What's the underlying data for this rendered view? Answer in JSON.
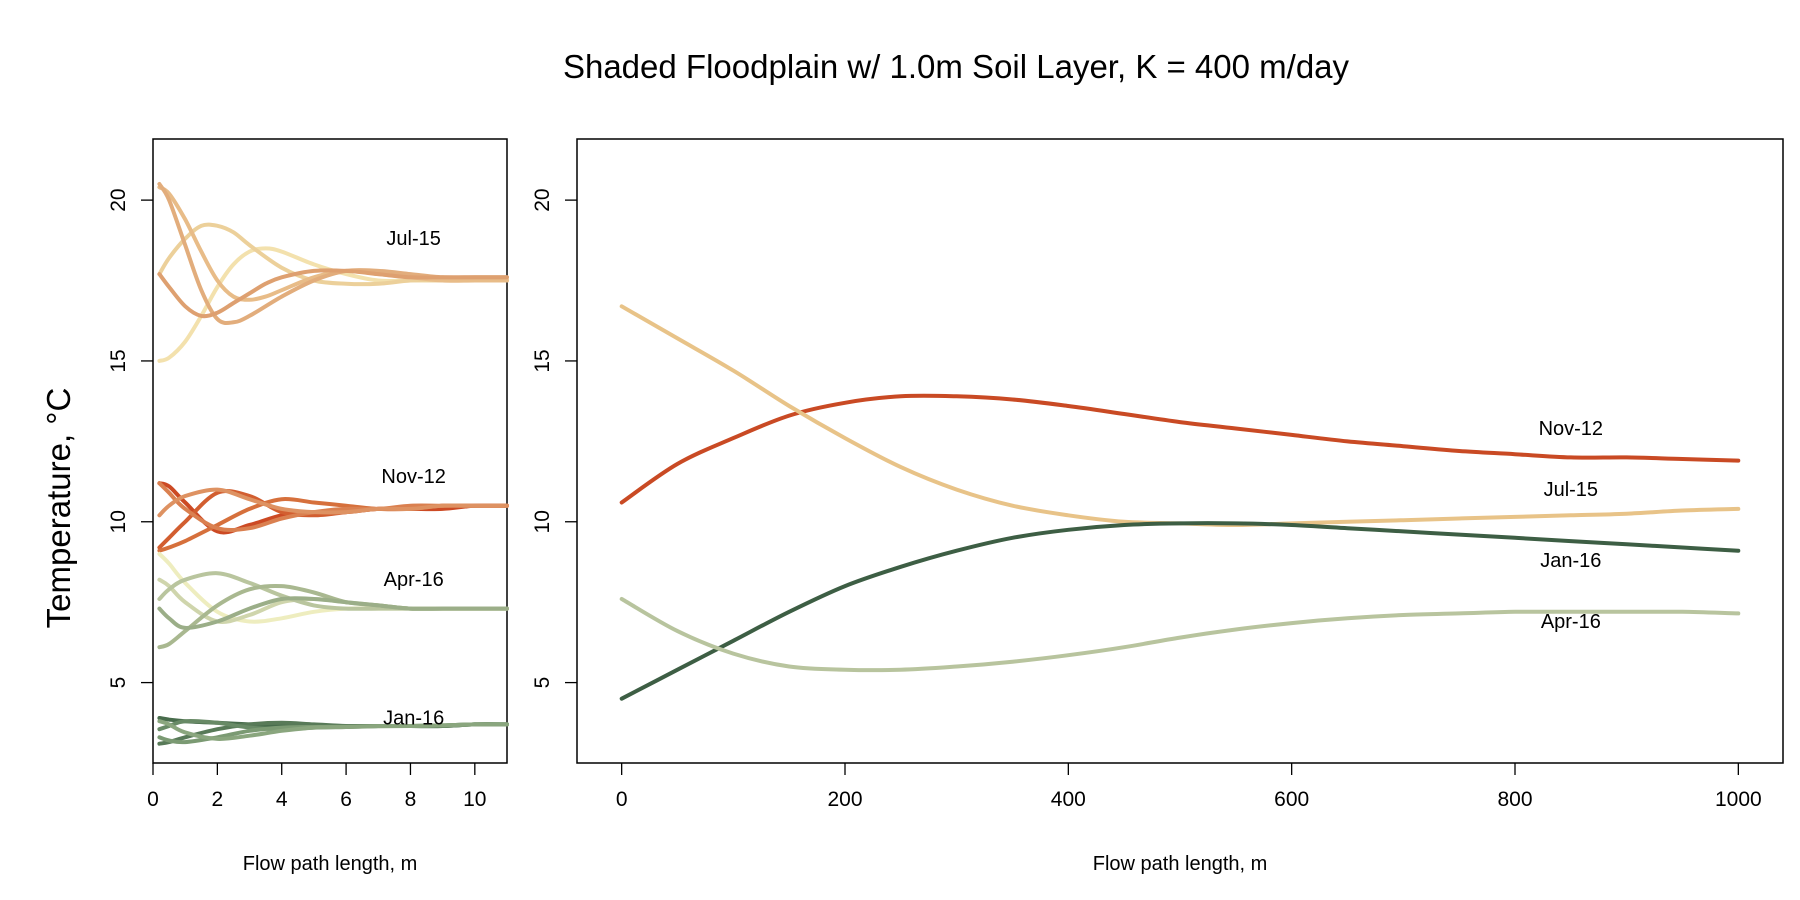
{
  "title": "Shaded Floodplain w/ 1.0m Soil Layer, K = 400 m/day",
  "ylabel": "Temperature, °C",
  "colors": {
    "Jul-15": [
      "#f3e1ad",
      "#ecd09a",
      "#e8bc88",
      "#e2ad7c",
      "#dea070"
    ],
    "Nov-12": [
      "#cc4a24",
      "#d25e30",
      "#d6703c",
      "#da8050",
      "#de9262"
    ],
    "Apr-16": [
      "#eeedbf",
      "#cfd5ac",
      "#b9c59e",
      "#a9b890",
      "#9bae88"
    ],
    "Jan-16": [
      "#486c4c",
      "#587a58",
      "#688a66",
      "#7b9a73",
      "#8aa67e"
    ],
    "right": {
      "Nov-12": "#c94a24",
      "Jul-15": "#e8c388",
      "Jan-16": "#3d5e44",
      "Apr-16": "#b8c49e"
    }
  },
  "chart_data": [
    {
      "type": "line",
      "xlabel": "Flow path length, m",
      "ylabel": "Temperature, °C",
      "xlim": [
        0,
        11
      ],
      "ylim": [
        2.5,
        21.9
      ],
      "xticks": [
        "0",
        "2",
        "4",
        "6",
        "8",
        "10"
      ],
      "yticks": [
        "5",
        "10",
        "15",
        "20"
      ],
      "grid": false,
      "annotations": [
        {
          "text": "Jul-15",
          "x": 8.1,
          "y": 18.6
        },
        {
          "text": "Nov-12",
          "x": 8.1,
          "y": 11.2
        },
        {
          "text": "Apr-16",
          "x": 8.1,
          "y": 8.0
        },
        {
          "text": "Jan-16",
          "x": 8.1,
          "y": 3.7
        }
      ],
      "series": [
        {
          "group": "Jul-15",
          "x": [
            0.2,
            0.5,
            1,
            1.5,
            2,
            2.5,
            3,
            3.5,
            4,
            5,
            6,
            7,
            8,
            9,
            10,
            11
          ],
          "y": [
            15.0,
            15.1,
            15.6,
            16.4,
            17.3,
            18.0,
            18.4,
            18.5,
            18.4,
            18.0,
            17.7,
            17.5,
            17.5,
            17.5,
            17.5,
            17.5
          ]
        },
        {
          "group": "Jul-15",
          "x": [
            0.2,
            0.5,
            1,
            1.5,
            2,
            2.5,
            3,
            4,
            5,
            6,
            7,
            8,
            9,
            10,
            11
          ],
          "y": [
            17.7,
            18.2,
            18.8,
            19.2,
            19.2,
            19.0,
            18.6,
            17.9,
            17.5,
            17.4,
            17.4,
            17.5,
            17.5,
            17.5,
            17.5
          ]
        },
        {
          "group": "Jul-15",
          "x": [
            0.2,
            0.5,
            1,
            1.5,
            2,
            2.5,
            3,
            3.5,
            4,
            5,
            6,
            7,
            8,
            9,
            10,
            11
          ],
          "y": [
            20.4,
            20.2,
            19.4,
            18.4,
            17.5,
            17.0,
            16.9,
            17.0,
            17.2,
            17.6,
            17.8,
            17.7,
            17.6,
            17.5,
            17.5,
            17.5
          ]
        },
        {
          "group": "Jul-15",
          "x": [
            0.2,
            0.5,
            1,
            1.5,
            2,
            2.5,
            3,
            4,
            5,
            6,
            7,
            8,
            9,
            10,
            11
          ],
          "y": [
            20.5,
            20.0,
            18.6,
            17.2,
            16.3,
            16.2,
            16.4,
            17.0,
            17.5,
            17.8,
            17.8,
            17.7,
            17.6,
            17.6,
            17.6
          ]
        },
        {
          "group": "Jul-15",
          "x": [
            0.2,
            0.5,
            1,
            1.5,
            2,
            2.5,
            3,
            3.5,
            4,
            5,
            6,
            7,
            8,
            9,
            10,
            11
          ],
          "y": [
            17.7,
            17.3,
            16.7,
            16.4,
            16.5,
            16.8,
            17.1,
            17.4,
            17.6,
            17.8,
            17.8,
            17.7,
            17.6,
            17.6,
            17.6,
            17.6
          ]
        },
        {
          "group": "Nov-12",
          "x": [
            0.2,
            0.5,
            1,
            2,
            3,
            4,
            5,
            6,
            7,
            8,
            9,
            10,
            11
          ],
          "y": [
            11.2,
            11.1,
            10.6,
            9.7,
            9.9,
            10.2,
            10.3,
            10.3,
            10.4,
            10.4,
            10.4,
            10.5,
            10.5
          ]
        },
        {
          "group": "Nov-12",
          "x": [
            0.2,
            0.5,
            1,
            2,
            3,
            4,
            5,
            6,
            7,
            8,
            9,
            10,
            11
          ],
          "y": [
            9.2,
            9.5,
            10.0,
            10.9,
            10.8,
            10.3,
            10.2,
            10.3,
            10.4,
            10.4,
            10.5,
            10.5,
            10.5
          ]
        },
        {
          "group": "Nov-12",
          "x": [
            0.2,
            0.5,
            1,
            2,
            3,
            4,
            5,
            6,
            7,
            8,
            9,
            10,
            11
          ],
          "y": [
            9.1,
            9.2,
            9.4,
            9.9,
            10.4,
            10.7,
            10.6,
            10.5,
            10.4,
            10.4,
            10.5,
            10.5,
            10.5
          ]
        },
        {
          "group": "Nov-12",
          "x": [
            0.2,
            0.5,
            1,
            2,
            3,
            4,
            5,
            6,
            7,
            8,
            9,
            10,
            11
          ],
          "y": [
            11.2,
            10.9,
            10.4,
            9.8,
            9.8,
            10.1,
            10.3,
            10.4,
            10.4,
            10.5,
            10.5,
            10.5,
            10.5
          ]
        },
        {
          "group": "Nov-12",
          "x": [
            0.2,
            0.5,
            1,
            2,
            3,
            4,
            5,
            6,
            7,
            8,
            9,
            10,
            11
          ],
          "y": [
            10.2,
            10.5,
            10.8,
            11.0,
            10.7,
            10.4,
            10.3,
            10.3,
            10.4,
            10.4,
            10.5,
            10.5,
            10.5
          ]
        },
        {
          "group": "Apr-16",
          "x": [
            0.2,
            0.5,
            1,
            2,
            3,
            4,
            5,
            6,
            7,
            8,
            9,
            10,
            11
          ],
          "y": [
            9.0,
            8.7,
            8.1,
            7.2,
            6.9,
            7.0,
            7.2,
            7.3,
            7.3,
            7.3,
            7.3,
            7.3,
            7.3
          ]
        },
        {
          "group": "Apr-16",
          "x": [
            0.2,
            0.5,
            1,
            2,
            3,
            4,
            5,
            6,
            7,
            8,
            9,
            10,
            11
          ],
          "y": [
            8.2,
            8.0,
            7.5,
            6.9,
            7.1,
            7.5,
            7.6,
            7.5,
            7.4,
            7.3,
            7.3,
            7.3,
            7.3
          ]
        },
        {
          "group": "Apr-16",
          "x": [
            0.2,
            0.5,
            1,
            2,
            3,
            4,
            5,
            6,
            7,
            8,
            9,
            10,
            11
          ],
          "y": [
            7.6,
            7.9,
            8.2,
            8.4,
            8.1,
            7.7,
            7.4,
            7.3,
            7.3,
            7.3,
            7.3,
            7.3,
            7.3
          ]
        },
        {
          "group": "Apr-16",
          "x": [
            0.2,
            0.5,
            1,
            2,
            3,
            4,
            5,
            6,
            7,
            8,
            9,
            10,
            11
          ],
          "y": [
            6.1,
            6.2,
            6.6,
            7.4,
            7.9,
            8.0,
            7.8,
            7.5,
            7.4,
            7.3,
            7.3,
            7.3,
            7.3
          ]
        },
        {
          "group": "Apr-16",
          "x": [
            0.2,
            0.5,
            1,
            2,
            3,
            4,
            5,
            6,
            7,
            8,
            9,
            10,
            11
          ],
          "y": [
            7.3,
            7.0,
            6.7,
            6.9,
            7.3,
            7.6,
            7.6,
            7.5,
            7.4,
            7.3,
            7.3,
            7.3,
            7.3
          ]
        },
        {
          "group": "Jan-16",
          "x": [
            0.2,
            0.5,
            1,
            2,
            3,
            4,
            5,
            6,
            7,
            8,
            9,
            10,
            11
          ],
          "y": [
            3.9,
            3.85,
            3.8,
            3.75,
            3.7,
            3.65,
            3.65,
            3.65,
            3.65,
            3.65,
            3.65,
            3.7,
            3.7
          ]
        },
        {
          "group": "Jan-16",
          "x": [
            0.2,
            0.5,
            1,
            2,
            3,
            4,
            5,
            6,
            7,
            8,
            9,
            10,
            11
          ],
          "y": [
            3.1,
            3.15,
            3.3,
            3.55,
            3.7,
            3.75,
            3.7,
            3.65,
            3.65,
            3.65,
            3.65,
            3.7,
            3.7
          ]
        },
        {
          "group": "Jan-16",
          "x": [
            0.2,
            0.5,
            1,
            2,
            3,
            4,
            5,
            6,
            7,
            8,
            9,
            10,
            11
          ],
          "y": [
            3.55,
            3.65,
            3.8,
            3.75,
            3.6,
            3.55,
            3.6,
            3.62,
            3.65,
            3.65,
            3.67,
            3.7,
            3.7
          ]
        },
        {
          "group": "Jan-16",
          "x": [
            0.2,
            0.5,
            1,
            2,
            3,
            4,
            5,
            6,
            7,
            8,
            9,
            10,
            11
          ],
          "y": [
            3.3,
            3.2,
            3.15,
            3.3,
            3.5,
            3.6,
            3.62,
            3.63,
            3.65,
            3.65,
            3.67,
            3.7,
            3.7
          ]
        },
        {
          "group": "Jan-16",
          "x": [
            0.2,
            0.5,
            1,
            2,
            3,
            4,
            5,
            6,
            7,
            8,
            9,
            10,
            11
          ],
          "y": [
            3.8,
            3.7,
            3.45,
            3.25,
            3.35,
            3.5,
            3.6,
            3.62,
            3.64,
            3.65,
            3.67,
            3.7,
            3.7
          ]
        }
      ]
    },
    {
      "type": "line",
      "xlabel": "Flow path length, m",
      "xlim": [
        -40,
        1040
      ],
      "ylim": [
        2.5,
        21.9
      ],
      "xticks": [
        "0",
        "200",
        "400",
        "600",
        "800",
        "1000"
      ],
      "yticks": [
        "5",
        "10",
        "15",
        "20"
      ],
      "grid": false,
      "series": [
        {
          "name": "Nov-12",
          "x": [
            0,
            50,
            100,
            150,
            200,
            250,
            300,
            350,
            400,
            450,
            500,
            550,
            600,
            650,
            700,
            750,
            800,
            850,
            900,
            950,
            1000
          ],
          "y": [
            10.6,
            11.8,
            12.6,
            13.3,
            13.7,
            13.9,
            13.9,
            13.8,
            13.6,
            13.35,
            13.1,
            12.9,
            12.7,
            12.5,
            12.35,
            12.2,
            12.1,
            12.0,
            12.0,
            11.95,
            11.9
          ]
        },
        {
          "name": "Jul-15",
          "x": [
            0,
            50,
            100,
            150,
            200,
            250,
            300,
            350,
            400,
            450,
            500,
            550,
            600,
            650,
            700,
            750,
            800,
            850,
            900,
            950,
            1000
          ],
          "y": [
            16.7,
            15.7,
            14.7,
            13.6,
            12.6,
            11.7,
            11.0,
            10.5,
            10.2,
            10.0,
            9.95,
            9.9,
            9.95,
            10.0,
            10.05,
            10.1,
            10.15,
            10.2,
            10.25,
            10.35,
            10.4
          ]
        },
        {
          "name": "Jan-16",
          "x": [
            0,
            50,
            100,
            150,
            200,
            250,
            300,
            350,
            400,
            450,
            500,
            550,
            600,
            650,
            700,
            750,
            800,
            850,
            900,
            950,
            1000
          ],
          "y": [
            4.5,
            5.4,
            6.3,
            7.2,
            8.0,
            8.6,
            9.1,
            9.5,
            9.75,
            9.9,
            9.95,
            9.95,
            9.9,
            9.8,
            9.7,
            9.6,
            9.5,
            9.4,
            9.3,
            9.2,
            9.1
          ]
        },
        {
          "name": "Apr-16",
          "x": [
            0,
            50,
            100,
            150,
            200,
            250,
            300,
            350,
            400,
            450,
            500,
            550,
            600,
            650,
            700,
            750,
            800,
            850,
            900,
            950,
            1000
          ],
          "y": [
            7.6,
            6.6,
            5.9,
            5.5,
            5.4,
            5.4,
            5.5,
            5.65,
            5.85,
            6.1,
            6.4,
            6.65,
            6.85,
            7.0,
            7.1,
            7.15,
            7.2,
            7.2,
            7.2,
            7.2,
            7.15
          ]
        }
      ],
      "annotations": [
        {
          "text": "Nov-12",
          "x": 850,
          "y": 12.7
        },
        {
          "text": "Jul-15",
          "x": 850,
          "y": 10.8
        },
        {
          "text": "Jan-16",
          "x": 850,
          "y": 8.6
        },
        {
          "text": "Apr-16",
          "x": 850,
          "y": 6.7
        }
      ]
    }
  ]
}
